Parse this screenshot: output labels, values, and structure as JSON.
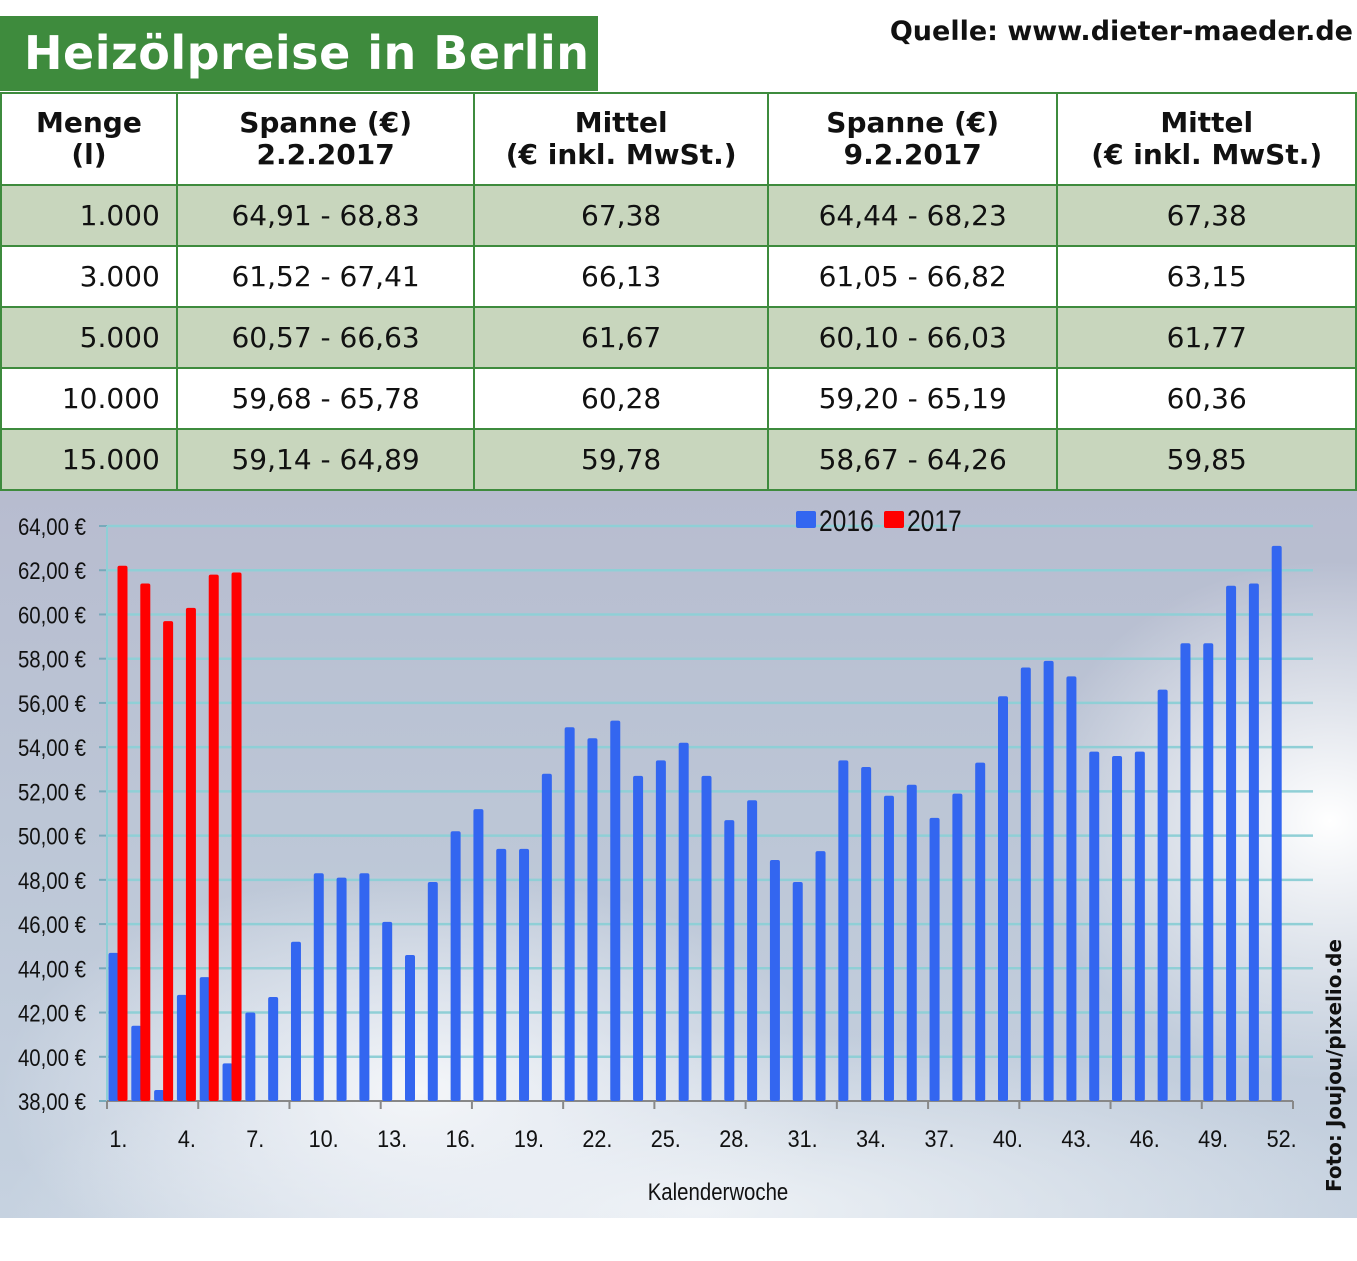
{
  "header": {
    "title": "Heizölpreise in Berlin",
    "source": "Quelle: www.dieter-maeder.de"
  },
  "table": {
    "columns": [
      {
        "line1": "Menge",
        "line2": "(l)"
      },
      {
        "line1": "Spanne (€)",
        "line2": "2.2.2017"
      },
      {
        "line1": "Mittel",
        "line2": "(€ inkl. MwSt.)"
      },
      {
        "line1": "Spanne (€)",
        "line2": "9.2.2017"
      },
      {
        "line1": "Mittel",
        "line2": "(€ inkl. MwSt.)"
      }
    ],
    "rows": [
      [
        "1.000",
        "64,91 - 68,83",
        "67,38",
        "64,44 - 68,23",
        "67,38"
      ],
      [
        "3.000",
        "61,52 - 67,41",
        "66,13",
        "61,05 - 66,82",
        "63,15"
      ],
      [
        "5.000",
        "60,57 - 66,63",
        "61,67",
        "60,10 - 66,03",
        "61,77"
      ],
      [
        "10.000",
        "59,68 - 65,78",
        "60,28",
        "59,20 - 65,19",
        "60,36"
      ],
      [
        "15.000",
        "59,14 - 64,89",
        "59,78",
        "58,67 - 64,26",
        "59,85"
      ]
    ],
    "colors": {
      "border": "#3e8b3d",
      "shade": "#c8d6bd"
    }
  },
  "chart_data": {
    "type": "bar",
    "xlabel": "Kalenderwoche",
    "ylabel": "",
    "ylim": [
      38,
      64
    ],
    "yticks": [
      "38,00 €",
      "40,00 €",
      "42,00 €",
      "44,00 €",
      "46,00 €",
      "48,00 €",
      "50,00 €",
      "52,00 €",
      "54,00 €",
      "56,00 €",
      "58,00 €",
      "60,00 €",
      "62,00 €",
      "64,00 €"
    ],
    "xticks": [
      "1.",
      "4.",
      "7.",
      "10.",
      "13.",
      "16.",
      "19.",
      "22.",
      "25.",
      "28.",
      "31.",
      "34.",
      "37.",
      "40.",
      "43.",
      "46.",
      "49.",
      "52."
    ],
    "grid": true,
    "legend": "top",
    "series": [
      {
        "name": "2016",
        "color": "#3366f0",
        "values": [
          44.7,
          41.4,
          38.5,
          42.8,
          43.6,
          39.7,
          42.0,
          42.7,
          45.2,
          48.3,
          48.1,
          48.3,
          46.1,
          44.6,
          47.9,
          50.2,
          51.2,
          49.4,
          49.4,
          52.8,
          54.9,
          54.4,
          55.2,
          52.7,
          53.4,
          54.2,
          52.7,
          50.7,
          51.6,
          48.9,
          47.9,
          49.3,
          53.4,
          53.1,
          51.8,
          52.3,
          50.8,
          51.9,
          53.3,
          56.3,
          57.6,
          57.9,
          57.2,
          53.8,
          53.6,
          53.8,
          56.6,
          58.7,
          58.7,
          61.3,
          61.4,
          63.1
        ]
      },
      {
        "name": "2017",
        "color": "#ff0000",
        "values": [
          62.2,
          61.4,
          59.7,
          60.3,
          61.8,
          61.9
        ]
      }
    ]
  },
  "photo_credit": "Foto: Joujou/pixelio.de"
}
